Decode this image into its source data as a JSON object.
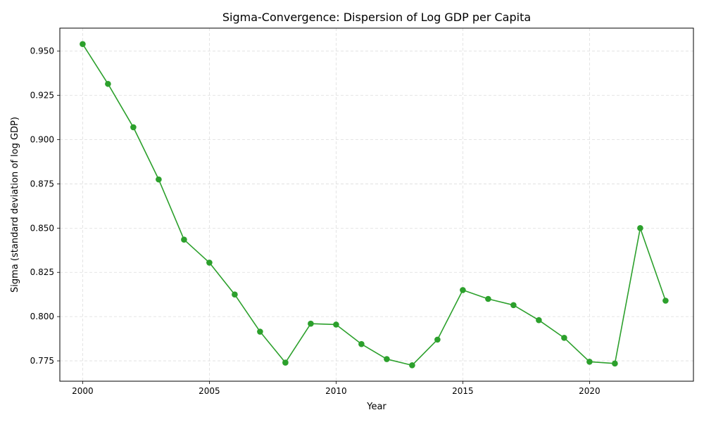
{
  "chart_data": {
    "type": "line",
    "title": "Sigma-Convergence: Dispersion of Log GDP per Capita",
    "xlabel": "Year",
    "ylabel": "Sigma (standard deviation of log GDP)",
    "xlim": [
      1999.1,
      2024.1
    ],
    "ylim": [
      0.7635,
      0.963
    ],
    "x_ticks": [
      2000,
      2005,
      2010,
      2015,
      2020
    ],
    "x_tick_labels": [
      "2000",
      "2005",
      "2010",
      "2015",
      "2020"
    ],
    "y_ticks": [
      0.775,
      0.8,
      0.825,
      0.85,
      0.875,
      0.9,
      0.925,
      0.95
    ],
    "y_tick_labels": [
      "0.775",
      "0.800",
      "0.825",
      "0.850",
      "0.875",
      "0.900",
      "0.925",
      "0.950"
    ],
    "grid": true,
    "legend": "none",
    "color": "#2ca02c",
    "series": [
      {
        "x": [
          2000,
          2001,
          2002,
          2003,
          2004,
          2005,
          2006,
          2007,
          2008,
          2009,
          2010,
          2011,
          2012,
          2013,
          2014,
          2015,
          2016,
          2017,
          2018,
          2019,
          2020,
          2021,
          2022,
          2023
        ],
        "values": [
          0.954,
          0.9315,
          0.907,
          0.8775,
          0.8435,
          0.8305,
          0.8125,
          0.7915,
          0.774,
          0.796,
          0.7955,
          0.7845,
          0.776,
          0.7725,
          0.787,
          0.815,
          0.81,
          0.8065,
          0.798,
          0.788,
          0.7745,
          0.7735,
          0.85,
          0.809
        ]
      }
    ]
  }
}
